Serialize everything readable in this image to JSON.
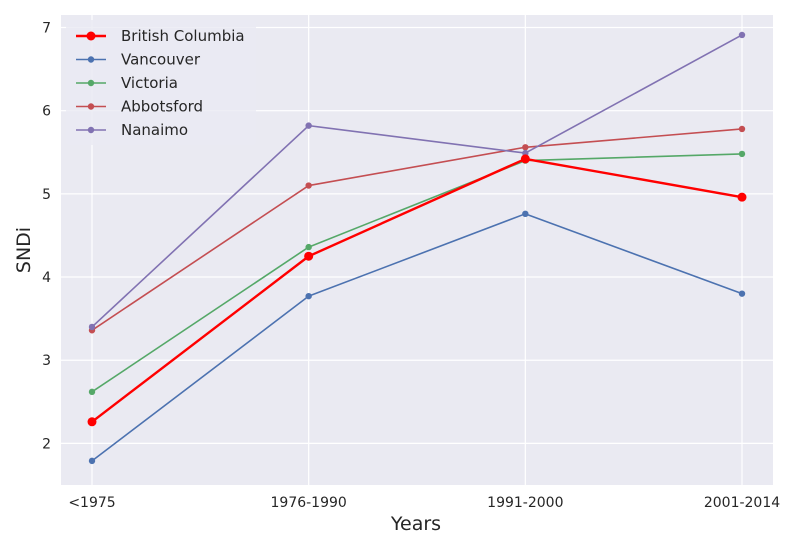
{
  "chart_data": {
    "type": "line",
    "categories": [
      "<1975",
      "1976-1990",
      "1991-2000",
      "2001-2014"
    ],
    "xlabel": "Years",
    "ylabel": "SNDi",
    "ylim": [
      1.5,
      7.15
    ],
    "yticks": [
      2,
      3,
      4,
      5,
      6,
      7
    ],
    "grid": true,
    "legend_position": "top-left",
    "series": [
      {
        "name": "British Columbia",
        "color": "#ff0000",
        "highlight": true,
        "values": [
          2.26,
          4.25,
          5.42,
          4.96
        ]
      },
      {
        "name": "Vancouver",
        "color": "#4c72b0",
        "highlight": false,
        "values": [
          1.79,
          3.77,
          4.76,
          3.8
        ]
      },
      {
        "name": "Victoria",
        "color": "#55a868",
        "highlight": false,
        "values": [
          2.62,
          4.36,
          5.4,
          5.48
        ]
      },
      {
        "name": "Abbotsford",
        "color": "#c44e52",
        "highlight": false,
        "values": [
          3.36,
          5.1,
          5.56,
          5.78
        ]
      },
      {
        "name": "Nanaimo",
        "color": "#8172b2",
        "highlight": false,
        "values": [
          3.4,
          5.82,
          5.49,
          6.91
        ]
      }
    ]
  }
}
